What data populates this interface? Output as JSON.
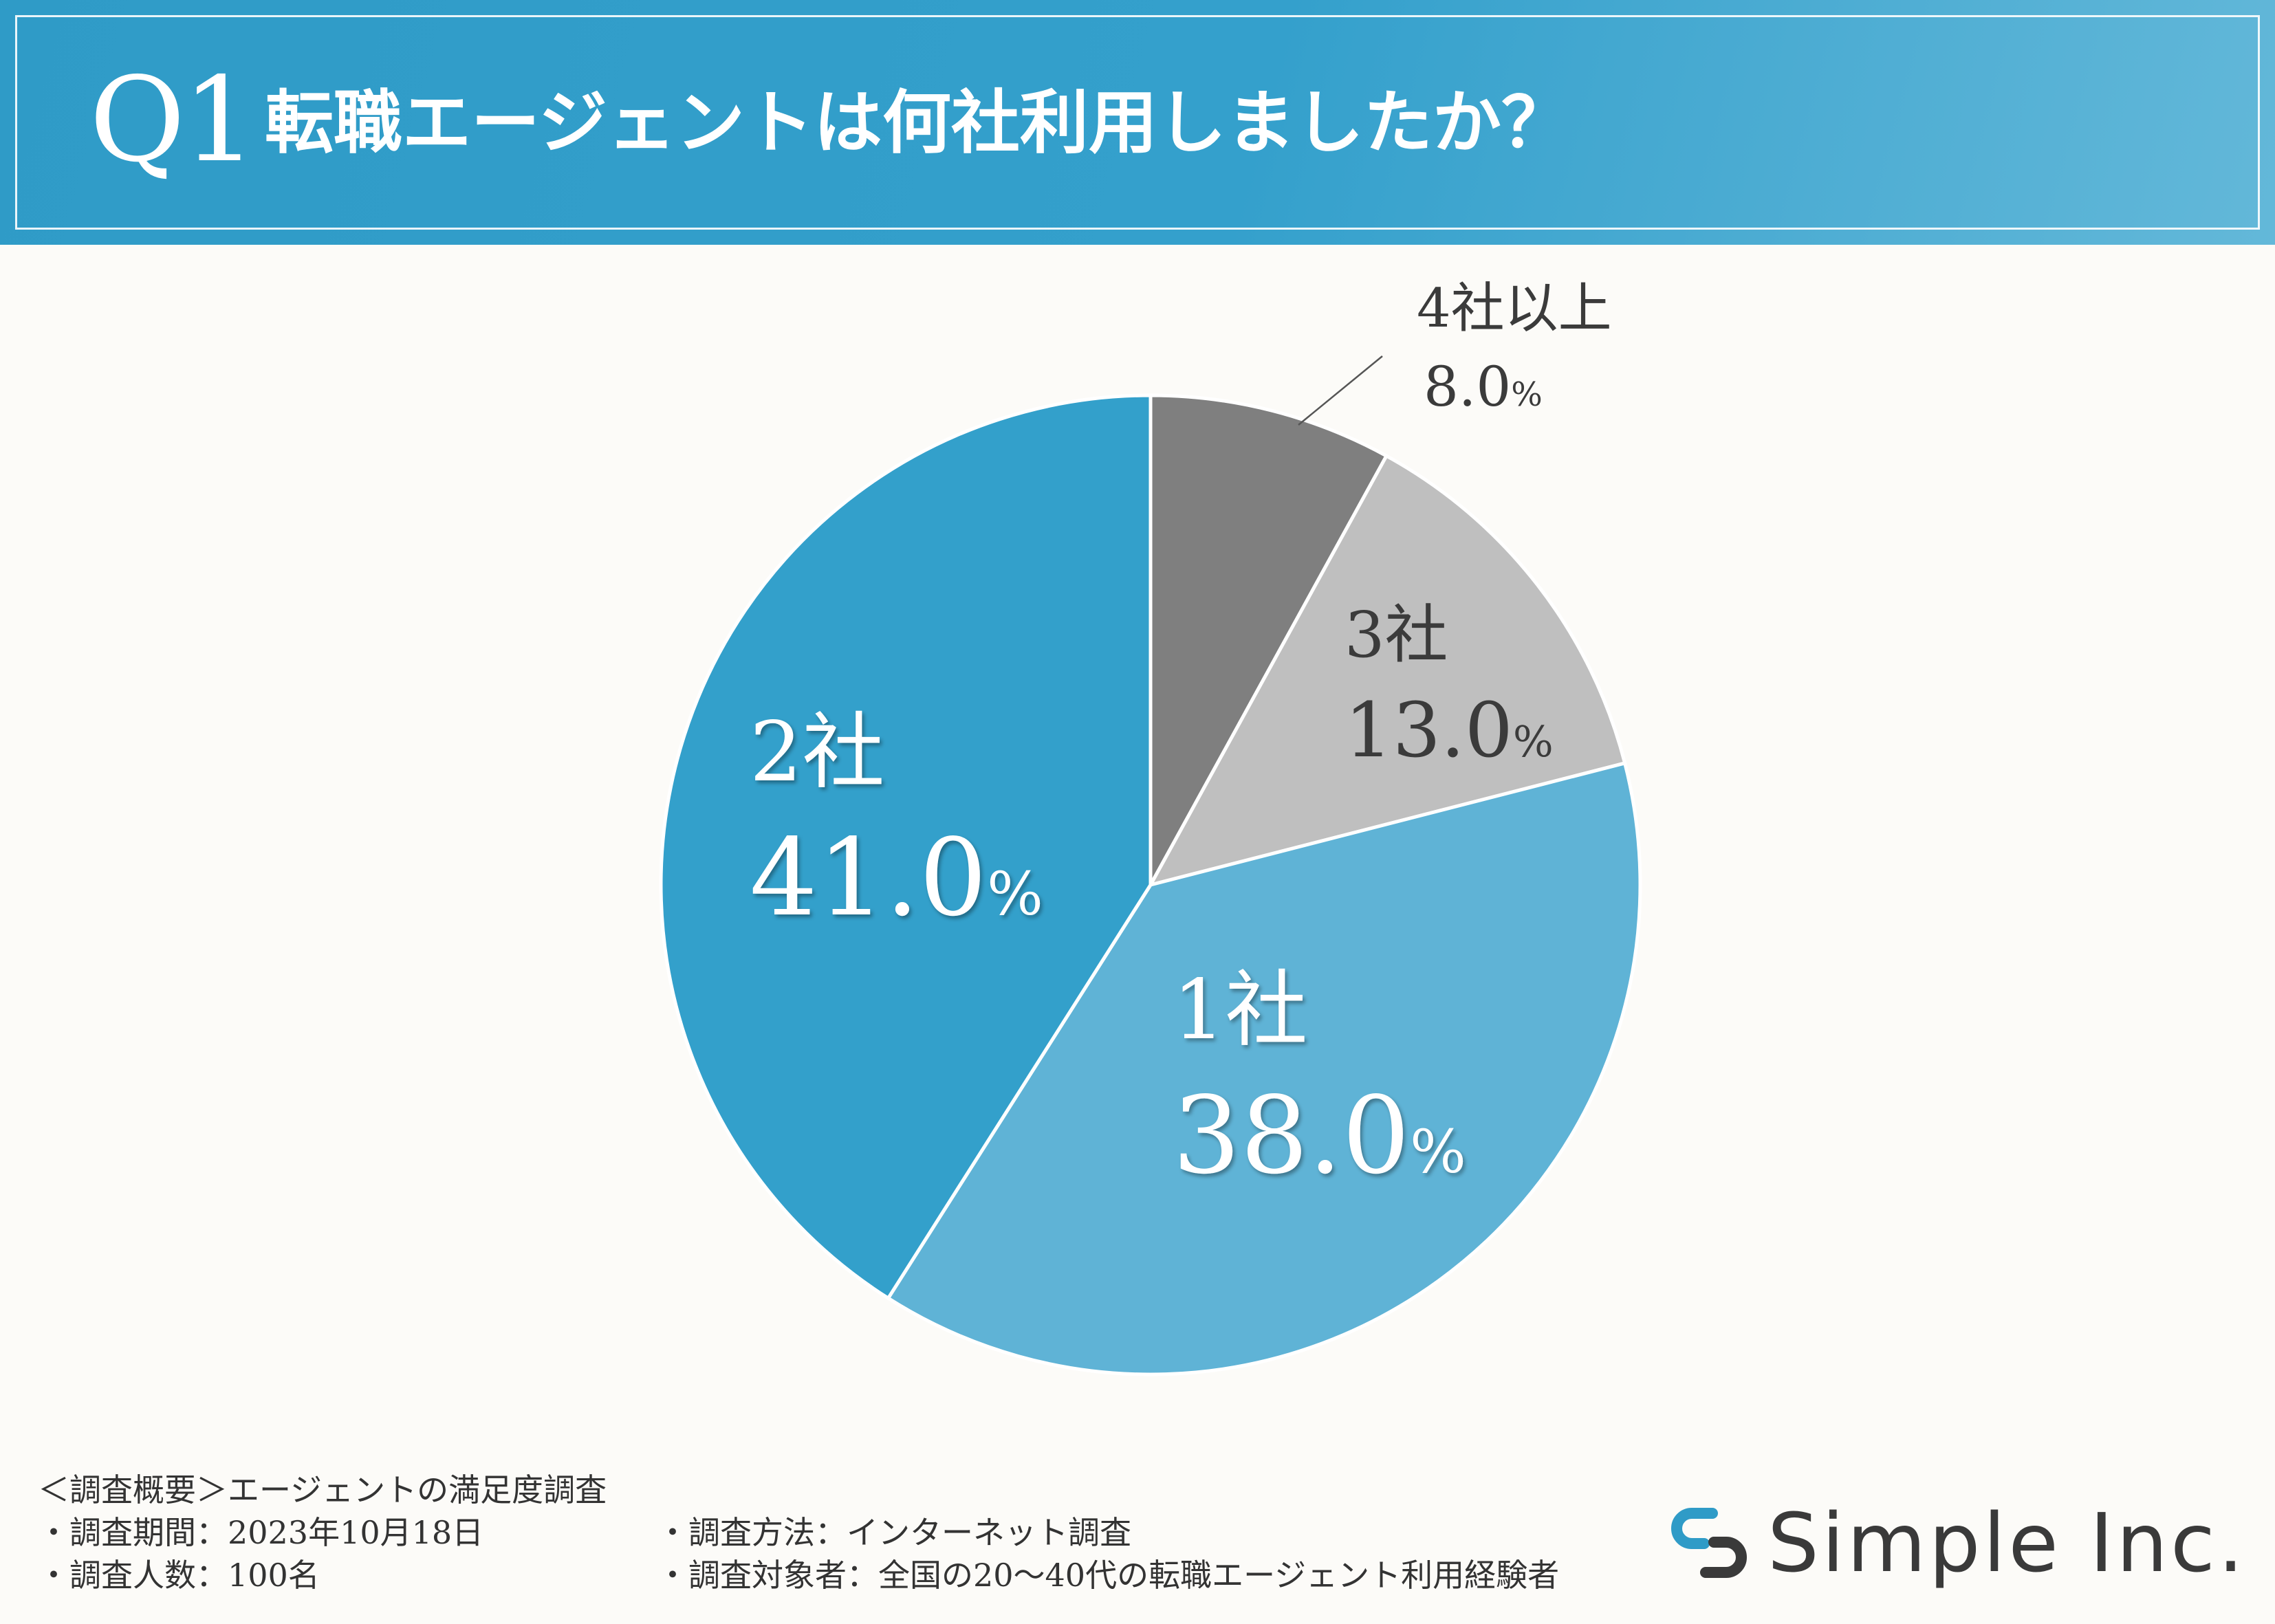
{
  "header": {
    "question_number": "Q1",
    "question_text": "転職エージェントは何社利用しましたか？"
  },
  "colors": {
    "header_bg": "#2f9bc7",
    "slice_4plus": "#7f7f7f",
    "slice_3": "#bfbfbf",
    "slice_1": "#5fb3d6",
    "slice_2": "#33a0cb",
    "label_dark": "#3b3b3b",
    "label_light": "#ffffff"
  },
  "chart_data": {
    "type": "pie",
    "title": "転職エージェントは何社利用しましたか？",
    "start": "top, clockwise",
    "slices": [
      {
        "name": "4社以上",
        "value": 8.0,
        "label": "8.0",
        "unit": "%"
      },
      {
        "name": "3社",
        "value": 13.0,
        "label": "13.0",
        "unit": "%"
      },
      {
        "name": "1社",
        "value": 38.0,
        "label": "38.0",
        "unit": "%"
      },
      {
        "name": "2社",
        "value": 41.0,
        "label": "41.0",
        "unit": "%"
      }
    ]
  },
  "footer": {
    "survey_title": "＜調査概要＞エージェントの満足度調査",
    "period": "・調査期間：2023年10月18日",
    "count": "・調査人数：100名",
    "method": "・調査方法：インターネット調査",
    "target": "・調査対象者：全国の20〜40代の転職エージェント利用経験者"
  },
  "brand": {
    "name": "Simple Inc.",
    "logo_icon": "chain-link-logo-icon"
  }
}
